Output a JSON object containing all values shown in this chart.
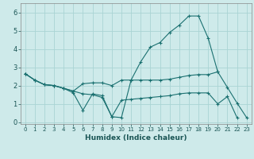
{
  "title": "",
  "xlabel": "Humidex (Indice chaleur)",
  "xlim": [
    -0.5,
    23.5
  ],
  "ylim": [
    -0.1,
    6.5
  ],
  "xticks": [
    0,
    1,
    2,
    3,
    4,
    5,
    6,
    7,
    8,
    9,
    10,
    11,
    12,
    13,
    14,
    15,
    16,
    17,
    18,
    19,
    20,
    21,
    22,
    23
  ],
  "yticks": [
    0,
    1,
    2,
    3,
    4,
    5,
    6
  ],
  "background_color": "#ceeaea",
  "grid_color": "#aad4d4",
  "line_color": "#1a7070",
  "lines": [
    {
      "x": [
        0,
        1,
        2,
        3,
        4,
        5,
        6,
        7,
        8,
        9,
        10,
        11,
        12,
        13,
        14,
        15,
        16,
        17,
        18,
        19,
        20
      ],
      "y": [
        2.65,
        2.3,
        2.05,
        2.0,
        1.85,
        1.7,
        1.55,
        1.5,
        1.35,
        0.3,
        0.25,
        2.3,
        3.3,
        4.1,
        4.35,
        4.9,
        5.3,
        5.8,
        5.8,
        4.6,
        2.75
      ]
    },
    {
      "x": [
        0,
        1,
        2,
        3,
        4,
        5,
        6,
        7,
        8,
        9,
        10,
        11,
        12,
        13,
        14,
        15,
        16,
        17,
        18,
        19,
        20,
        21,
        22,
        23
      ],
      "y": [
        2.65,
        2.3,
        2.05,
        2.0,
        1.85,
        1.7,
        2.1,
        2.15,
        2.15,
        2.0,
        2.3,
        2.3,
        2.3,
        2.3,
        2.3,
        2.35,
        2.45,
        2.55,
        2.6,
        2.6,
        2.75,
        1.9,
        1.05,
        0.25
      ]
    },
    {
      "x": [
        0,
        1,
        2,
        3,
        4,
        5,
        6,
        7,
        8,
        9,
        10,
        11,
        12,
        13,
        14,
        15,
        16,
        17,
        18,
        19,
        20,
        21,
        22
      ],
      "y": [
        2.65,
        2.3,
        2.05,
        2.0,
        1.85,
        1.6,
        0.65,
        1.55,
        1.45,
        0.3,
        1.2,
        1.25,
        1.3,
        1.35,
        1.4,
        1.45,
        1.55,
        1.6,
        1.6,
        1.6,
        1.0,
        1.4,
        0.25
      ]
    }
  ]
}
